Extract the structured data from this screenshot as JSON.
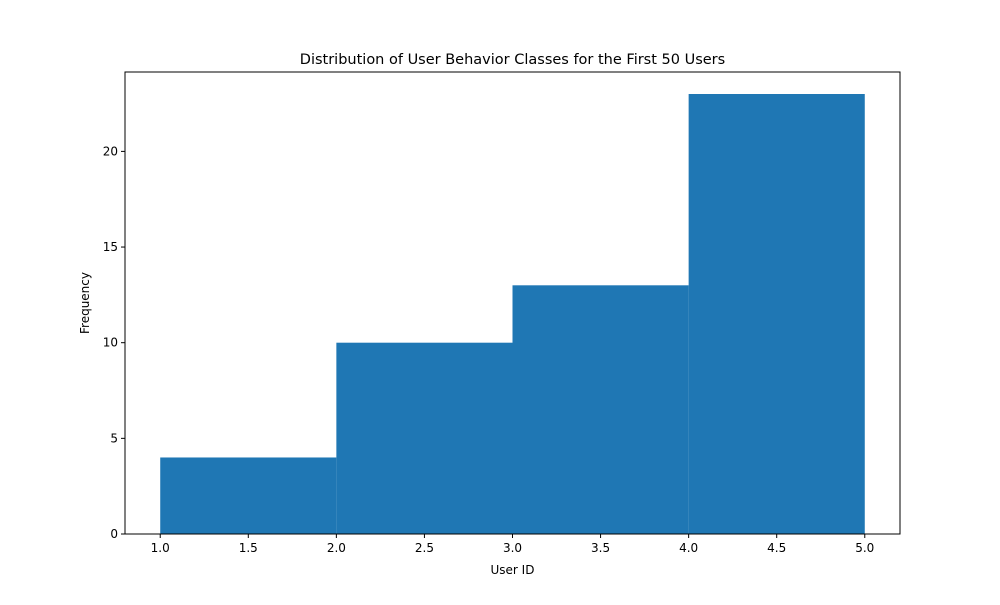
{
  "chart_data": {
    "type": "bar",
    "subtype": "histogram",
    "title": "Distribution of User Behavior Classes for the First 50 Users",
    "xlabel": "User ID",
    "ylabel": "Frequency",
    "bins": [
      {
        "start": 1.0,
        "end": 2.0,
        "value": 4
      },
      {
        "start": 2.0,
        "end": 3.0,
        "value": 10
      },
      {
        "start": 3.0,
        "end": 4.0,
        "value": 13
      },
      {
        "start": 4.0,
        "end": 5.0,
        "value": 23
      }
    ],
    "xlim": [
      0.8,
      5.2
    ],
    "ylim": [
      0,
      24.15
    ],
    "xticks": [
      {
        "value": 1.0,
        "label": "1.0"
      },
      {
        "value": 1.5,
        "label": "1.5"
      },
      {
        "value": 2.0,
        "label": "2.0"
      },
      {
        "value": 2.5,
        "label": "2.5"
      },
      {
        "value": 3.0,
        "label": "3.0"
      },
      {
        "value": 3.5,
        "label": "3.5"
      },
      {
        "value": 4.0,
        "label": "4.0"
      },
      {
        "value": 4.5,
        "label": "4.5"
      },
      {
        "value": 5.0,
        "label": "5.0"
      }
    ],
    "yticks": [
      {
        "value": 0,
        "label": "0"
      },
      {
        "value": 5,
        "label": "5"
      },
      {
        "value": 10,
        "label": "10"
      },
      {
        "value": 15,
        "label": "15"
      },
      {
        "value": 20,
        "label": "20"
      }
    ],
    "bar_color": "#1f77b4",
    "grid": false,
    "legend": "none"
  }
}
